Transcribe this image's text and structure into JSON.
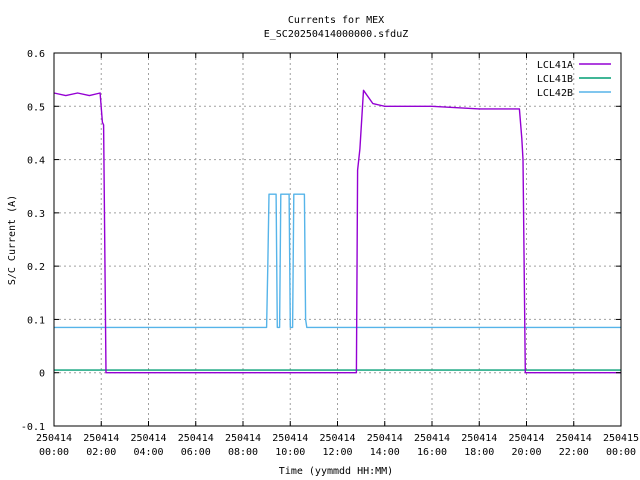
{
  "chart_data": {
    "type": "line",
    "title": "Currents for MEX",
    "subtitle": "E_SC20250414000000.sfduZ",
    "xlabel": "Time (yymmdd HH:MM)",
    "ylabel": "S/C Current (A)",
    "xlim": [
      0,
      24
    ],
    "ylim": [
      -0.1,
      0.6
    ],
    "grid": true,
    "legend_position": "top-right",
    "x_ticks": [
      {
        "value": 0,
        "date": "250414",
        "time": "00:00"
      },
      {
        "value": 2,
        "date": "250414",
        "time": "02:00"
      },
      {
        "value": 4,
        "date": "250414",
        "time": "04:00"
      },
      {
        "value": 6,
        "date": "250414",
        "time": "06:00"
      },
      {
        "value": 8,
        "date": "250414",
        "time": "08:00"
      },
      {
        "value": 10,
        "date": "250414",
        "time": "10:00"
      },
      {
        "value": 12,
        "date": "250414",
        "time": "12:00"
      },
      {
        "value": 14,
        "date": "250414",
        "time": "14:00"
      },
      {
        "value": 16,
        "date": "250414",
        "time": "16:00"
      },
      {
        "value": 18,
        "date": "250414",
        "time": "18:00"
      },
      {
        "value": 20,
        "date": "250414",
        "time": "20:00"
      },
      {
        "value": 22,
        "date": "250414",
        "time": "22:00"
      },
      {
        "value": 24,
        "date": "250415",
        "time": "00:00"
      }
    ],
    "y_ticks": [
      {
        "value": -0.1,
        "label": "-0.1"
      },
      {
        "value": 0,
        "label": "0"
      },
      {
        "value": 0.1,
        "label": "0.1"
      },
      {
        "value": 0.2,
        "label": "0.2"
      },
      {
        "value": 0.3,
        "label": "0.3"
      },
      {
        "value": 0.4,
        "label": "0.4"
      },
      {
        "value": 0.5,
        "label": "0.5"
      },
      {
        "value": 0.6,
        "label": "0.6"
      }
    ],
    "series": [
      {
        "name": "LCL41A",
        "color": "#9400d3",
        "x": [
          0,
          0.5,
          1.0,
          1.5,
          1.95,
          2.05,
          2.1,
          2.2,
          2.3,
          4,
          6,
          8,
          10,
          12,
          12.8,
          12.85,
          12.95,
          13.1,
          13.5,
          14,
          16,
          18,
          19.7,
          19.8,
          19.85,
          19.95,
          20.1,
          22,
          24
        ],
        "y": [
          0.525,
          0.52,
          0.525,
          0.52,
          0.525,
          0.47,
          0.465,
          0.0,
          0.0,
          0.0,
          0.0,
          0.0,
          0.0,
          0.0,
          0.0,
          0.38,
          0.42,
          0.53,
          0.505,
          0.5,
          0.5,
          0.495,
          0.495,
          0.44,
          0.4,
          0.0,
          0.0,
          0.0,
          0.0
        ]
      },
      {
        "name": "LCL41B",
        "color": "#009e73",
        "x": [
          0,
          4,
          8,
          12,
          16,
          20,
          24
        ],
        "y": [
          0.005,
          0.005,
          0.005,
          0.005,
          0.005,
          0.005,
          0.005
        ]
      },
      {
        "name": "LCL42B",
        "color": "#56b4e9",
        "x": [
          0,
          9.0,
          9.05,
          9.1,
          9.4,
          9.45,
          9.55,
          9.6,
          9.95,
          10.0,
          10.1,
          10.15,
          10.6,
          10.65,
          10.7,
          12,
          16,
          20,
          24
        ],
        "y": [
          0.085,
          0.085,
          0.2,
          0.335,
          0.335,
          0.085,
          0.085,
          0.335,
          0.335,
          0.085,
          0.085,
          0.335,
          0.335,
          0.1,
          0.085,
          0.085,
          0.085,
          0.085,
          0.085
        ]
      }
    ]
  }
}
